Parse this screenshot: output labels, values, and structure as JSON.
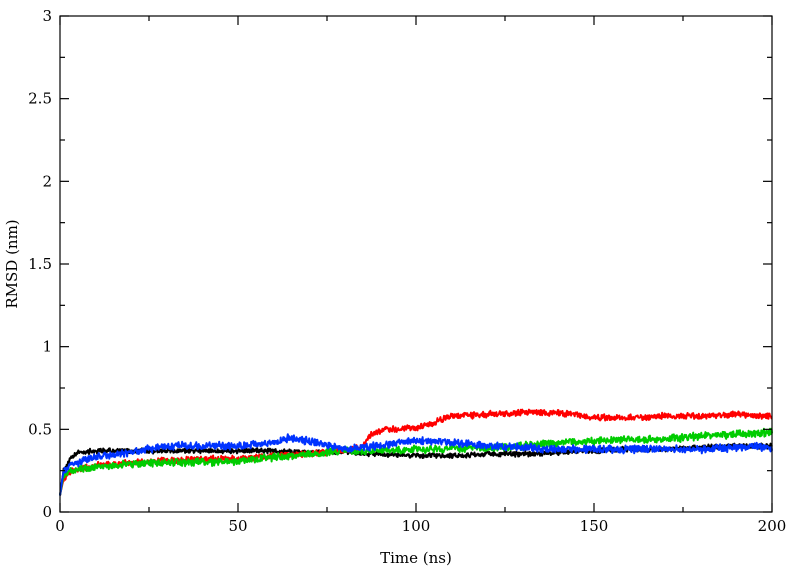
{
  "chart_data": {
    "type": "line",
    "title": "",
    "xlabel": "Time (ns)",
    "ylabel": "RMSD (nm)",
    "xlim": [
      0,
      200
    ],
    "ylim": [
      0,
      3
    ],
    "xticks": [
      0,
      50,
      100,
      150,
      200
    ],
    "xtick_labels": [
      "0",
      "50",
      "100",
      "150",
      "200"
    ],
    "yticks": [
      0,
      0.5,
      1,
      1.5,
      2,
      2.5,
      3
    ],
    "ytick_labels": [
      "0",
      "0.5",
      "1",
      "1.5",
      "2",
      "2.5",
      "3"
    ],
    "grid": false,
    "legend": "none",
    "series": [
      {
        "color": "#000000",
        "noise": 0.012,
        "x": [
          0,
          1,
          3,
          5,
          10,
          20,
          30,
          40,
          50,
          60,
          70,
          80,
          90,
          100,
          110,
          120,
          130,
          140,
          150,
          160,
          170,
          180,
          190,
          195,
          200
        ],
        "y": [
          0.1,
          0.25,
          0.32,
          0.36,
          0.37,
          0.37,
          0.37,
          0.37,
          0.37,
          0.37,
          0.36,
          0.36,
          0.35,
          0.34,
          0.34,
          0.35,
          0.35,
          0.36,
          0.37,
          0.38,
          0.38,
          0.39,
          0.4,
          0.4,
          0.4
        ]
      },
      {
        "color": "#ff0000",
        "noise": 0.015,
        "x": [
          0,
          1,
          3,
          5,
          10,
          20,
          30,
          40,
          50,
          60,
          70,
          80,
          85,
          87,
          90,
          100,
          105,
          110,
          120,
          130,
          140,
          150,
          160,
          170,
          180,
          190,
          200
        ],
        "y": [
          0.1,
          0.2,
          0.24,
          0.26,
          0.28,
          0.3,
          0.31,
          0.32,
          0.32,
          0.34,
          0.35,
          0.37,
          0.39,
          0.46,
          0.49,
          0.51,
          0.54,
          0.58,
          0.59,
          0.6,
          0.6,
          0.57,
          0.57,
          0.58,
          0.58,
          0.59,
          0.58
        ]
      },
      {
        "color": "#00cc00",
        "noise": 0.018,
        "x": [
          0,
          1,
          3,
          5,
          10,
          20,
          30,
          40,
          50,
          60,
          70,
          80,
          90,
          100,
          110,
          120,
          130,
          140,
          150,
          160,
          170,
          180,
          190,
          200
        ],
        "y": [
          0.1,
          0.22,
          0.25,
          0.26,
          0.27,
          0.29,
          0.3,
          0.3,
          0.31,
          0.33,
          0.35,
          0.37,
          0.37,
          0.38,
          0.38,
          0.39,
          0.4,
          0.42,
          0.43,
          0.44,
          0.44,
          0.46,
          0.47,
          0.48
        ]
      },
      {
        "color": "#0033ff",
        "noise": 0.018,
        "x": [
          0,
          1,
          3,
          5,
          10,
          20,
          30,
          40,
          50,
          60,
          65,
          70,
          80,
          90,
          100,
          110,
          120,
          130,
          140,
          150,
          160,
          170,
          180,
          190,
          195,
          200
        ],
        "y": [
          0.1,
          0.25,
          0.28,
          0.3,
          0.33,
          0.36,
          0.4,
          0.4,
          0.4,
          0.42,
          0.45,
          0.43,
          0.38,
          0.4,
          0.43,
          0.42,
          0.4,
          0.39,
          0.38,
          0.38,
          0.38,
          0.38,
          0.38,
          0.39,
          0.4,
          0.38
        ]
      }
    ]
  }
}
